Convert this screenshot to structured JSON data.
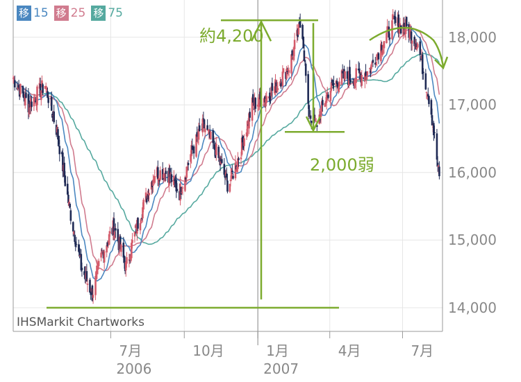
{
  "legend": [
    {
      "badge": "移",
      "value": "15",
      "color": "#4a87c0"
    },
    {
      "badge": "移",
      "value": "25",
      "color": "#d07b8e"
    },
    {
      "badge": "移",
      "value": "75",
      "color": "#55a99f"
    }
  ],
  "watermark": "IHSMarkit Chartworks",
  "annotations": {
    "rise": "約4,200",
    "fall": "2,000弱"
  },
  "colors": {
    "annotation": "#7cab2e",
    "up_candle": "#d45a6a",
    "down_candle": "#1f2a55",
    "ma15": "#4a87c0",
    "ma25": "#d07b8e",
    "ma75": "#55a99f",
    "grid": "#e6e6e6",
    "axis": "#999999"
  },
  "chart_data": {
    "type": "candlestick",
    "title": "",
    "ylim": [
      13650,
      18550
    ],
    "y_ticks": [
      {
        "value": 14000,
        "label": "14,000"
      },
      {
        "value": 15000,
        "label": "15,000"
      },
      {
        "value": 16000,
        "label": "16,000"
      },
      {
        "value": 17000,
        "label": "17,000"
      },
      {
        "value": 18000,
        "label": "18,000"
      }
    ],
    "x_ticks": [
      {
        "label": "7月",
        "date": "2006-07-01"
      },
      {
        "label": "10月",
        "date": "2006-10-01"
      },
      {
        "label": "1月",
        "date": "2007-01-01"
      },
      {
        "label": "4月",
        "date": "2007-04-01"
      },
      {
        "label": "7月",
        "date": "2007-07-01"
      }
    ],
    "year_labels": [
      {
        "label": "2006",
        "date": "2006-07-01"
      },
      {
        "label": "2007",
        "date": "2007-01-01"
      }
    ],
    "x_range": [
      "2006-03-01",
      "2007-08-20"
    ],
    "year_divider_date": "2007-01-01",
    "series_price_path": [
      {
        "date": "2006-03-01",
        "v": 17400
      },
      {
        "date": "2006-03-20",
        "v": 17000
      },
      {
        "date": "2006-04-10",
        "v": 17300
      },
      {
        "date": "2006-04-25",
        "v": 16600
      },
      {
        "date": "2006-05-10",
        "v": 15500
      },
      {
        "date": "2006-05-25",
        "v": 14600
      },
      {
        "date": "2006-06-08",
        "v": 14200
      },
      {
        "date": "2006-06-20",
        "v": 14800
      },
      {
        "date": "2006-07-05",
        "v": 15200
      },
      {
        "date": "2006-07-20",
        "v": 14600
      },
      {
        "date": "2006-08-05",
        "v": 15300
      },
      {
        "date": "2006-08-25",
        "v": 16000
      },
      {
        "date": "2006-09-10",
        "v": 16000
      },
      {
        "date": "2006-09-25",
        "v": 15700
      },
      {
        "date": "2006-10-10",
        "v": 16300
      },
      {
        "date": "2006-10-25",
        "v": 16700
      },
      {
        "date": "2006-11-10",
        "v": 16300
      },
      {
        "date": "2006-11-25",
        "v": 15800
      },
      {
        "date": "2006-12-10",
        "v": 16300
      },
      {
        "date": "2006-12-25",
        "v": 17000
      },
      {
        "date": "2007-01-10",
        "v": 17100
      },
      {
        "date": "2007-01-25",
        "v": 17300
      },
      {
        "date": "2007-02-10",
        "v": 17600
      },
      {
        "date": "2007-02-25",
        "v": 18250
      },
      {
        "date": "2007-03-05",
        "v": 16900
      },
      {
        "date": "2007-03-15",
        "v": 16700
      },
      {
        "date": "2007-03-30",
        "v": 17200
      },
      {
        "date": "2007-04-15",
        "v": 17400
      },
      {
        "date": "2007-05-01",
        "v": 17400
      },
      {
        "date": "2007-05-20",
        "v": 17500
      },
      {
        "date": "2007-06-05",
        "v": 17900
      },
      {
        "date": "2007-06-20",
        "v": 18200
      },
      {
        "date": "2007-07-05",
        "v": 18150
      },
      {
        "date": "2007-07-20",
        "v": 17900
      },
      {
        "date": "2007-08-05",
        "v": 17000
      },
      {
        "date": "2007-08-16",
        "v": 15900
      }
    ],
    "annotation_levels": {
      "top": 18250,
      "mid_low": 16600,
      "bottom": 14000
    }
  }
}
